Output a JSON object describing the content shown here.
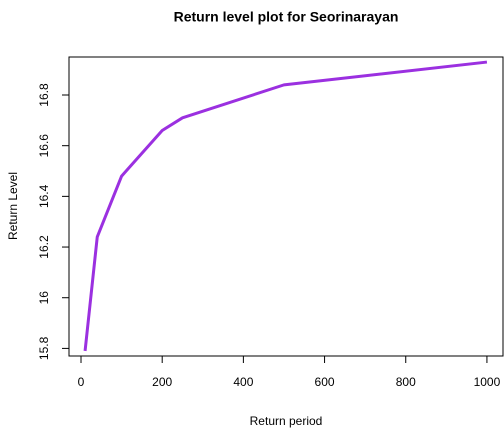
{
  "chart_data": {
    "type": "line",
    "title": "Return level plot for Seorinarayan",
    "x_label": "Return period",
    "y_label": "Return Level",
    "x": [
      10,
      40,
      100,
      200,
      250,
      500,
      1000
    ],
    "series": [
      {
        "name": "Return level",
        "color": "#9b30e0",
        "values": [
          15.79,
          16.24,
          16.48,
          16.66,
          16.71,
          16.84,
          16.93
        ]
      }
    ],
    "xlim": [
      -29.6,
      1039.6
    ],
    "ylim": [
      15.77,
      16.95
    ],
    "xticks": [
      0,
      200,
      400,
      600,
      800,
      1000
    ],
    "yticks": [
      15.8,
      16.0,
      16.2,
      16.4,
      16.6,
      16.8
    ],
    "grid": false
  }
}
